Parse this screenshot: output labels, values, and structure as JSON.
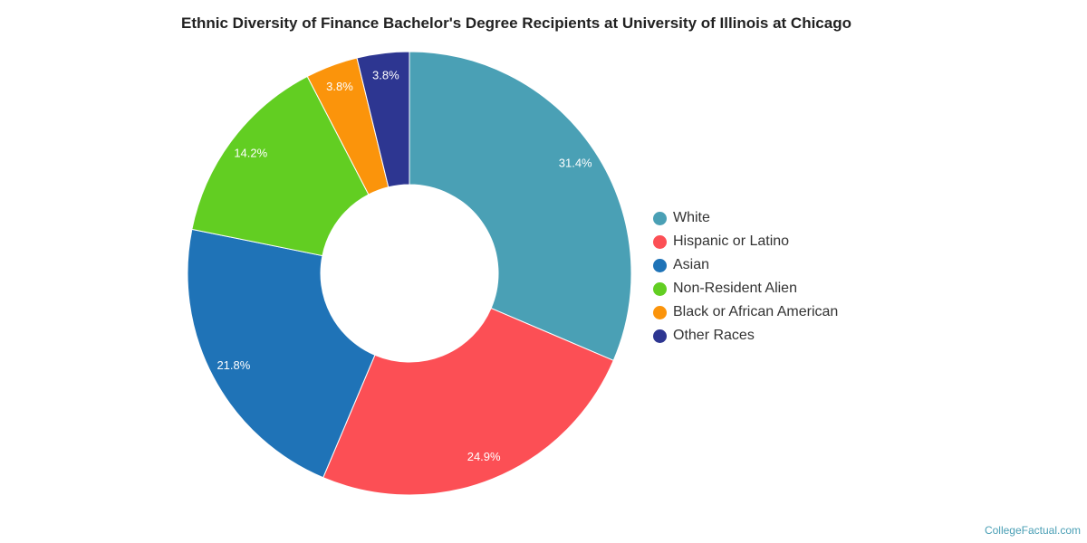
{
  "chart_data": {
    "type": "pie",
    "title": "Ethnic Diversity of Finance Bachelor's Degree Recipients at University of Illinois at Chicago",
    "legend_position": "right",
    "slices": [
      {
        "name": "White",
        "value": 31.4,
        "label": "31.4%",
        "color": "#4aa0b5"
      },
      {
        "name": "Hispanic or Latino",
        "value": 24.9,
        "label": "24.9%",
        "color": "#fc4f55"
      },
      {
        "name": "Asian",
        "value": 21.8,
        "label": "21.8%",
        "color": "#1f73b7"
      },
      {
        "name": "Non-Resident Alien",
        "value": 14.2,
        "label": "14.2%",
        "color": "#62ce22"
      },
      {
        "name": "Black or African American",
        "value": 3.8,
        "label": "3.8%",
        "color": "#fb940b"
      },
      {
        "name": "Other Races",
        "value": 3.8,
        "label": "3.8%",
        "color": "#2d3691"
      }
    ]
  },
  "credit": "CollegeFactual.com"
}
